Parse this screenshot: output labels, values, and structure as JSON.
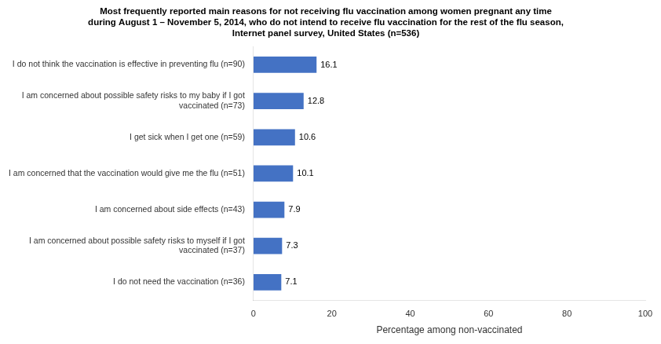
{
  "chart_data": {
    "type": "bar",
    "orientation": "horizontal",
    "title": "Most frequently reported main reasons for not receiving flu vaccination among women pregnant any time\nduring August 1 – November 5, 2014, who do not intend to receive flu vaccination for the rest of the flu season,\nInternet panel survey, United States (n=536)",
    "categories": [
      "I do not think the vaccination is effective in preventing flu (n=90)",
      "I am concerned about possible safety risks to my baby if I got\nvaccinated (n=73)",
      "I get sick when I get one (n=59)",
      "I am concerned that the vaccination would give me the flu (n=51)",
      "I am concerned about side effects (n=43)",
      "I am concerned about possible safety risks to myself if I got\nvaccinated (n=37)",
      "I do not need the vaccination (n=36)"
    ],
    "values": [
      16.1,
      12.8,
      10.6,
      10.1,
      7.9,
      7.3,
      7.1
    ],
    "color": "#4472C4",
    "xlabel": "Percentage among non-vaccinated",
    "xlim": [
      0,
      100
    ],
    "xticks": [
      0,
      20,
      40,
      60,
      80,
      100
    ],
    "data_labels": true,
    "grid": false
  }
}
